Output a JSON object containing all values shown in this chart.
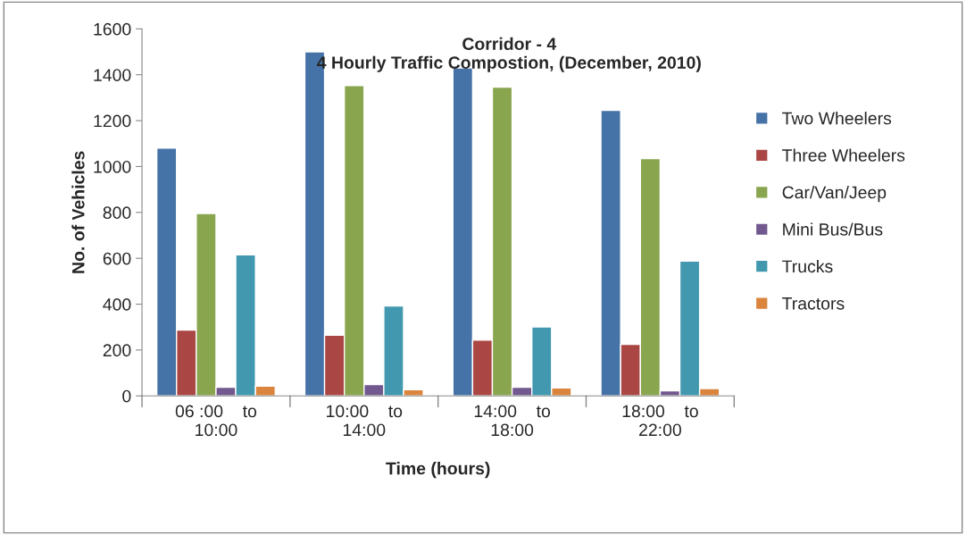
{
  "chart_data": {
    "type": "bar",
    "title": "Corridor - 4\n4 Hourly Traffic Compostion, (December, 2010)",
    "xlabel": "Time (hours)",
    "ylabel": "No. of Vehicles",
    "categories": [
      "06 :00    to\n10:00",
      "10:00    to\n14:00",
      "14:00    to\n18:00",
      "18:00    to\n22:00"
    ],
    "series": [
      {
        "name": "Two Wheelers",
        "color": "#4572a7",
        "values": [
          1080,
          1500,
          1430,
          1245
        ]
      },
      {
        "name": "Three Wheelers",
        "color": "#aa4643",
        "values": [
          287,
          265,
          243,
          225
        ]
      },
      {
        "name": "Car/Van/Jeep",
        "color": "#89a54e",
        "values": [
          795,
          1353,
          1346,
          1035
        ]
      },
      {
        "name": "Mini Bus/Bus",
        "color": "#71588f",
        "values": [
          38,
          49,
          38,
          22
        ]
      },
      {
        "name": "Trucks",
        "color": "#4198af",
        "values": [
          615,
          392,
          301,
          588
        ]
      },
      {
        "name": "Tractors",
        "color": "#db843d",
        "values": [
          43,
          27,
          35,
          32
        ]
      }
    ],
    "ylim": [
      0,
      1600
    ],
    "yticks": [
      0,
      200,
      400,
      600,
      800,
      1000,
      1200,
      1400,
      1600
    ],
    "grid": false,
    "legend": "right"
  }
}
